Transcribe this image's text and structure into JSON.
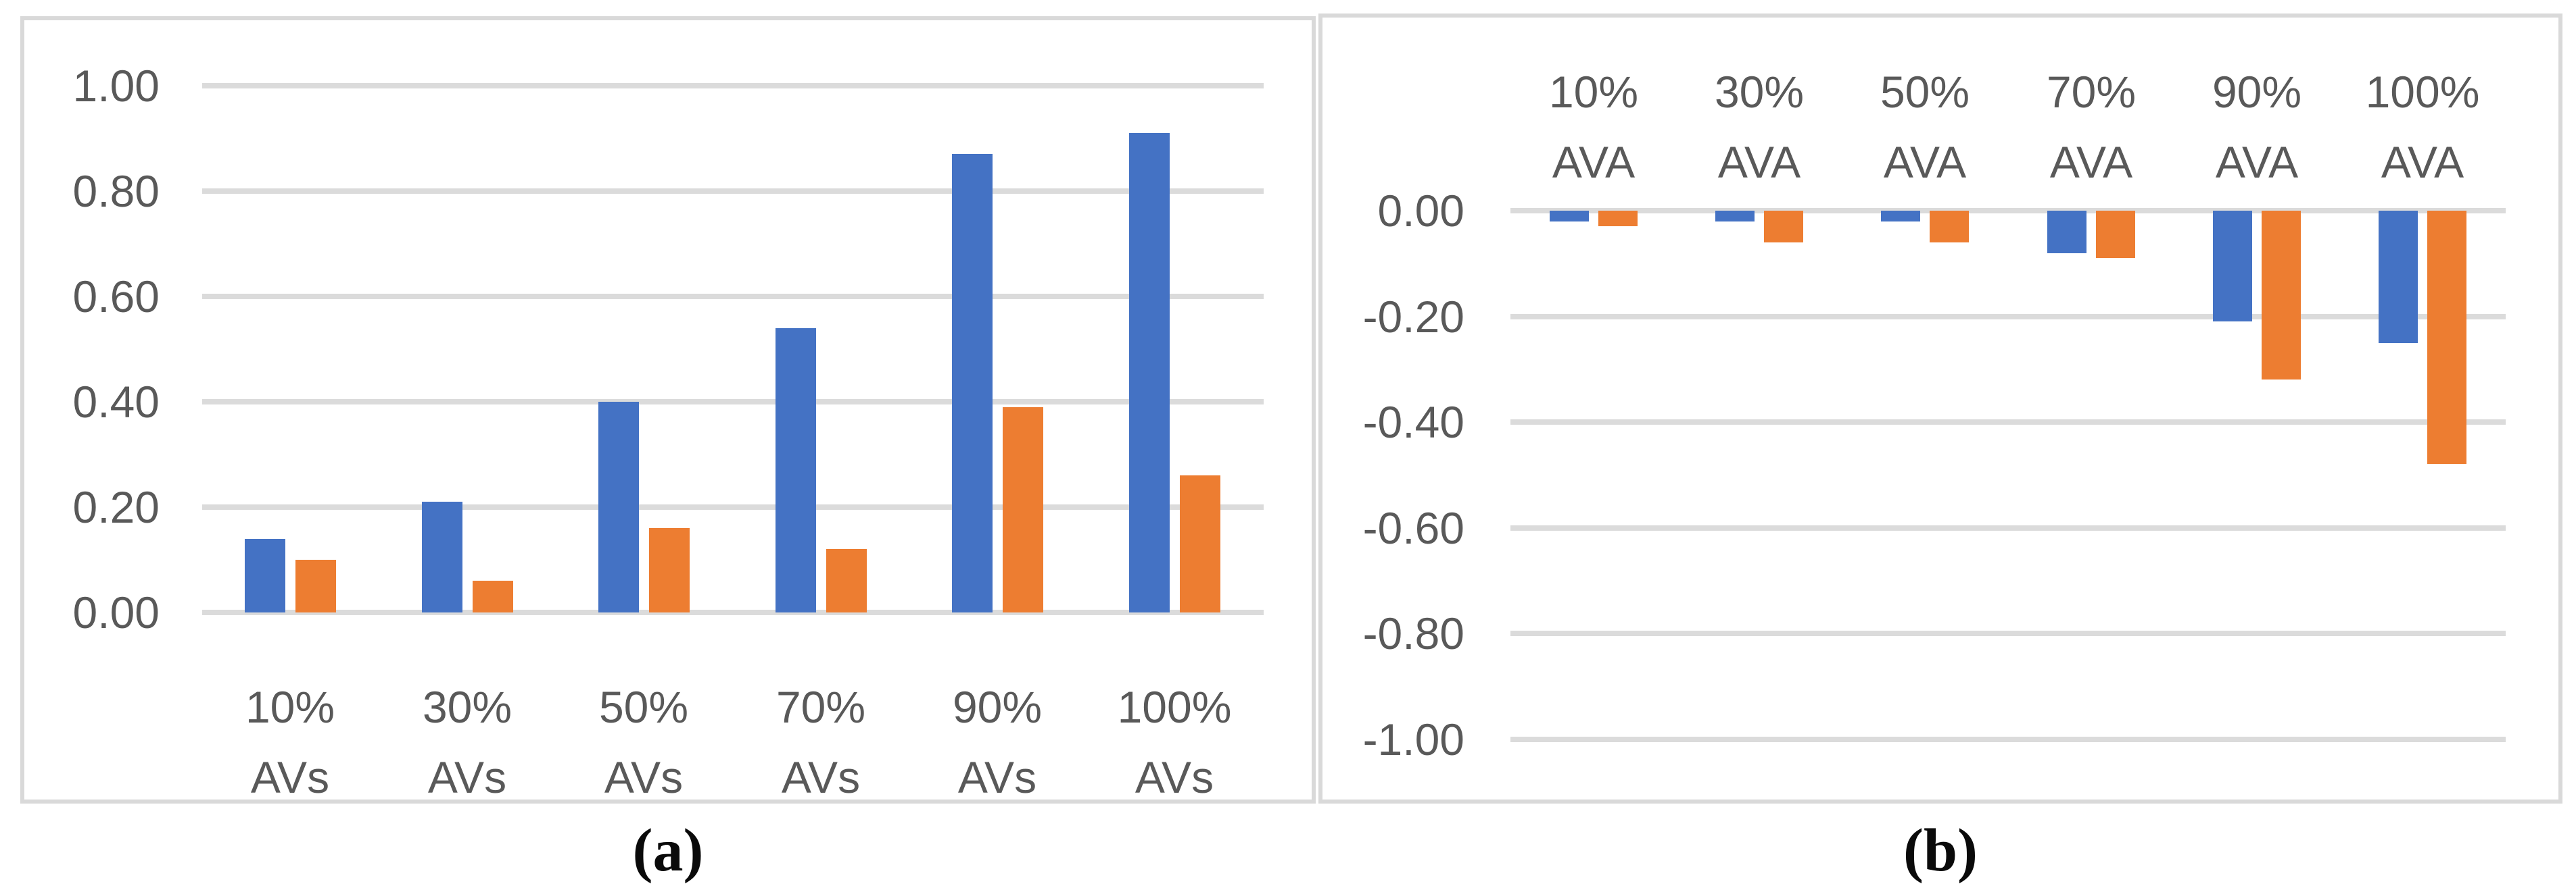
{
  "figure": {
    "captions": [
      "(a)",
      "(b)"
    ]
  },
  "colors": {
    "series_blue": "#4472C4",
    "series_orange": "#ED7D31",
    "gridline": "#DBDBDB",
    "panel_border": "#D9D9D9",
    "axis_text": "#595959"
  },
  "chart_data": [
    {
      "id": "a",
      "type": "bar",
      "title": "",
      "xlabel": "",
      "ylabel": "",
      "legend": false,
      "grid": true,
      "ylim": [
        0,
        1
      ],
      "y_ticks": [
        "1.00",
        "0.80",
        "0.60",
        "0.40",
        "0.20",
        "0.00"
      ],
      "categories": [
        "10% AVs",
        "30% AVs",
        "50% AVs",
        "70% AVs",
        "90% AVs",
        "100% AVs"
      ],
      "category_label_position": "bottom",
      "series": [
        {
          "name": "blue",
          "color": "#4472C4",
          "values": [
            0.14,
            0.21,
            0.4,
            0.54,
            0.87,
            0.91
          ]
        },
        {
          "name": "orange",
          "color": "#ED7D31",
          "values": [
            0.1,
            0.06,
            0.16,
            0.12,
            0.39,
            0.26
          ]
        }
      ]
    },
    {
      "id": "b",
      "type": "bar",
      "title": "",
      "xlabel": "",
      "ylabel": "",
      "legend": false,
      "grid": true,
      "ylim": [
        -1,
        0
      ],
      "y_ticks": [
        "0.00",
        "-0.20",
        "-0.40",
        "-0.60",
        "-0.80",
        "-1.00"
      ],
      "categories": [
        "10% AVA",
        "30% AVA",
        "50% AVA",
        "70% AVA",
        "90% AVA",
        "100% AVA"
      ],
      "category_label_position": "top",
      "series": [
        {
          "name": "blue",
          "color": "#4472C4",
          "values": [
            -0.02,
            -0.02,
            -0.02,
            -0.08,
            -0.21,
            -0.25
          ]
        },
        {
          "name": "orange",
          "color": "#ED7D31",
          "values": [
            -0.03,
            -0.06,
            -0.06,
            -0.09,
            -0.32,
            -0.48
          ]
        }
      ]
    }
  ]
}
